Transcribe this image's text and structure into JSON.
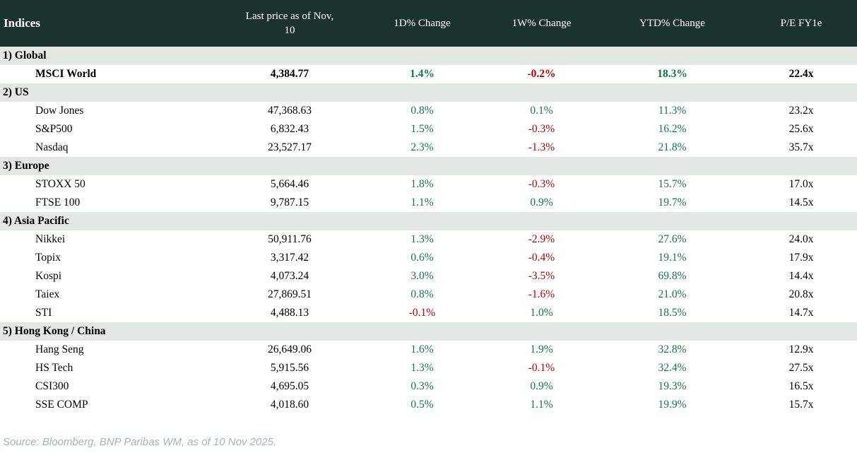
{
  "colors": {
    "header_bg": "#1b332e",
    "section_bg": "#e4e8e4",
    "positive": "#0e7d3c",
    "negative": "#c00000",
    "header_text": "#ffffff",
    "source_text": "#a7b2b6"
  },
  "header": {
    "title": "Indices",
    "columns": [
      "Last price as of Nov,\n10",
      "1D% Change",
      "1W% Change",
      "YTD% Change",
      "P/E FY1e"
    ]
  },
  "chart_data": {
    "type": "table",
    "title": "Indices",
    "columns": [
      "Indices",
      "Last price as of Nov, 10",
      "1D% Change",
      "1W% Change",
      "YTD% Change",
      "P/E FY1e"
    ],
    "sections": [
      {
        "label": "1) Global",
        "rows": [
          {
            "name": "MSCI World",
            "last_price": "4,384.77",
            "d1": "1.4%",
            "w1": "-0.2%",
            "ytd": "18.3%",
            "pe": "22.4x",
            "bold": true
          }
        ]
      },
      {
        "label": "2) US",
        "rows": [
          {
            "name": "Dow Jones",
            "last_price": "47,368.63",
            "d1": "0.8%",
            "w1": "0.1%",
            "ytd": "11.3%",
            "pe": "23.2x",
            "bold": false
          },
          {
            "name": "S&P500",
            "last_price": "6,832.43",
            "d1": "1.5%",
            "w1": "-0.3%",
            "ytd": "16.2%",
            "pe": "25.6x",
            "bold": false
          },
          {
            "name": "Nasdaq",
            "last_price": "23,527.17",
            "d1": "2.3%",
            "w1": "-1.3%",
            "ytd": "21.8%",
            "pe": "35.7x",
            "bold": false
          }
        ]
      },
      {
        "label": "3) Europe",
        "rows": [
          {
            "name": "STOXX 50",
            "last_price": "5,664.46",
            "d1": "1.8%",
            "w1": "-0.3%",
            "ytd": "15.7%",
            "pe": "17.0x",
            "bold": false
          },
          {
            "name": "FTSE 100",
            "last_price": "9,787.15",
            "d1": "1.1%",
            "w1": "0.9%",
            "ytd": "19.7%",
            "pe": "14.5x",
            "bold": false
          }
        ]
      },
      {
        "label": "4) Asia Pacific",
        "rows": [
          {
            "name": "Nikkei",
            "last_price": "50,911.76",
            "d1": "1.3%",
            "w1": "-2.9%",
            "ytd": "27.6%",
            "pe": "24.0x",
            "bold": false
          },
          {
            "name": "Topix",
            "last_price": "3,317.42",
            "d1": "0.6%",
            "w1": "-0.4%",
            "ytd": "19.1%",
            "pe": "17.9x",
            "bold": false
          },
          {
            "name": "Kospi",
            "last_price": "4,073.24",
            "d1": "3.0%",
            "w1": "-3.5%",
            "ytd": "69.8%",
            "pe": "14.4x",
            "bold": false
          },
          {
            "name": "Taiex",
            "last_price": "27,869.51",
            "d1": "0.8%",
            "w1": "-1.6%",
            "ytd": "21.0%",
            "pe": "20.8x",
            "bold": false
          },
          {
            "name": "STI",
            "last_price": "4,488.13",
            "d1": "-0.1%",
            "w1": "1.0%",
            "ytd": "18.5%",
            "pe": "14.7x",
            "bold": false
          }
        ]
      },
      {
        "label": "5) Hong Kong / China",
        "rows": [
          {
            "name": "Hang Seng",
            "last_price": "26,649.06",
            "d1": "1.6%",
            "w1": "1.9%",
            "ytd": "32.8%",
            "pe": "12.9x",
            "bold": false
          },
          {
            "name": "HS Tech",
            "last_price": "5,915.56",
            "d1": "1.3%",
            "w1": "-0.1%",
            "ytd": "32.4%",
            "pe": "27.5x",
            "bold": false
          },
          {
            "name": "CSI300",
            "last_price": "4,695.05",
            "d1": "0.3%",
            "w1": "0.9%",
            "ytd": "19.3%",
            "pe": "16.5x",
            "bold": false
          },
          {
            "name": "SSE COMP",
            "last_price": "4,018.60",
            "d1": "0.5%",
            "w1": "1.1%",
            "ytd": "19.9%",
            "pe": "15.7x",
            "bold": false
          }
        ]
      }
    ]
  },
  "footer": {
    "source": "Source: Bloomberg, BNP Paribas WM, as of 10 Nov 2025."
  }
}
